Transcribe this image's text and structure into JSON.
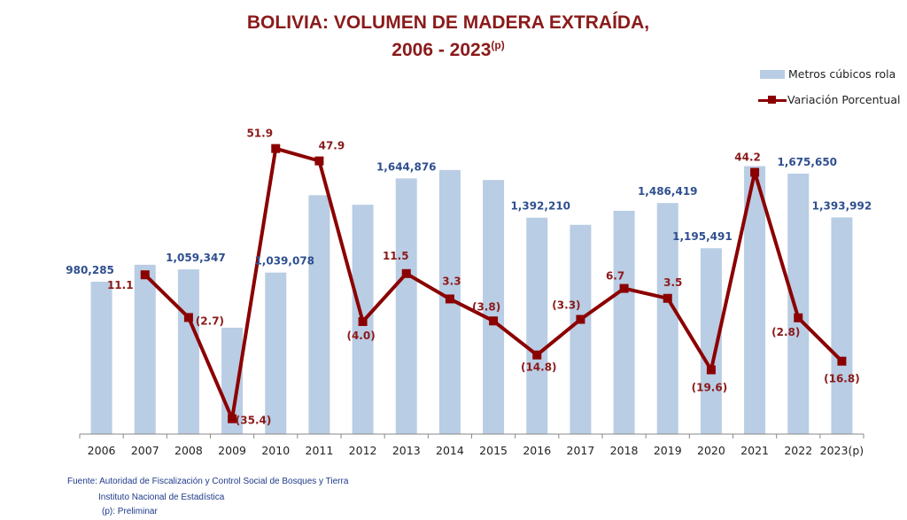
{
  "title": {
    "line1": "BOLIVIA: VOLUMEN DE MADERA EXTRAÍDA,",
    "line2": "2006 - 2023",
    "line2_sup": "(p)"
  },
  "legend": {
    "bars": "Metros cúbicos rola",
    "line": "Variación Porcentual"
  },
  "source": {
    "line1": "Fuente: Autoridad de Fiscalización y Control Social de Bosques y Tierra",
    "line2": "Instituto Nacional de Estadística",
    "line3": "(p): Preliminar"
  },
  "colors": {
    "bar": "#b9cde4",
    "line": "#8b0000",
    "bar_label": "#2f4f8f",
    "line_label": "#8b1a1a",
    "title": "#8b1a1a"
  },
  "chart_data": {
    "type": "bar+line",
    "title": "BOLIVIA: VOLUMEN DE MADERA EXTRAÍDA, 2006 - 2023(p)",
    "categories": [
      "2006",
      "2007",
      "2008",
      "2009",
      "2010",
      "2011",
      "2012",
      "2013",
      "2014",
      "2015",
      "2016",
      "2017",
      "2018",
      "2019",
      "2020",
      "2021",
      "2022",
      "2023(p)"
    ],
    "series": [
      {
        "name": "Metros cúbicos rola",
        "type": "bar",
        "axis": "primary",
        "values": [
          980285,
          1089097,
          1059347,
          684338,
          1039078,
          1536796,
          1475324,
          1644876,
          1699157,
          1634589,
          1392210,
          1346267,
          1436467,
          1486419,
          1195491,
          1723898,
          1675650,
          1393992
        ],
        "labels": [
          "980,285",
          "",
          "1,059,347",
          "",
          "1,039,078",
          "",
          "",
          "1,644,876",
          "",
          "",
          "1,392,210",
          "",
          "",
          "1,486,419",
          "1,195,491",
          "",
          "1,675,650",
          "1,393,992"
        ]
      },
      {
        "name": "Variación Porcentual",
        "type": "line",
        "axis": "secondary",
        "values": [
          null,
          11.1,
          -2.7,
          -35.4,
          51.9,
          47.9,
          -4.0,
          11.5,
          3.3,
          -3.8,
          -14.8,
          -3.3,
          6.7,
          3.5,
          -19.6,
          44.2,
          -2.8,
          -16.8
        ],
        "labels": [
          "",
          "11.1",
          "(2.7)",
          "(35.4)",
          "51.9",
          "47.9",
          "(4.0)",
          "11.5",
          "3.3",
          "(3.8)",
          "(14.8)",
          "(3.3)",
          "6.7",
          "3.5",
          "(19.6)",
          "44.2",
          "(2.8)",
          "(16.8)"
        ]
      }
    ],
    "primary_ylim": [
      0,
      1950000
    ],
    "secondary_ylim": [
      -40,
      60
    ],
    "grid": false,
    "legend_position": "top-right",
    "xlabel": "",
    "ylabel": ""
  }
}
